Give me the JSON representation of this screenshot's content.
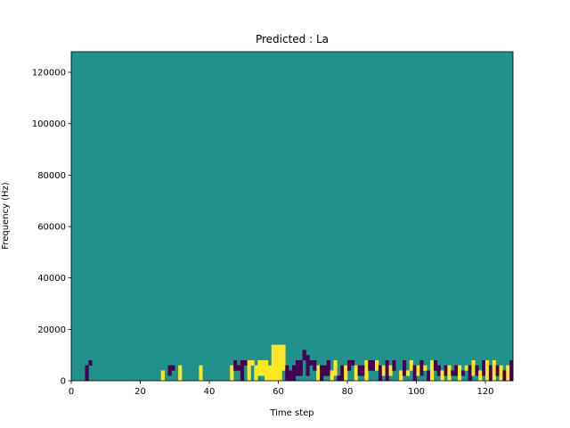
{
  "chart_data": {
    "type": "heatmap",
    "title": "Predicted : La",
    "xlabel": "Time step",
    "ylabel": "Frequency (Hz)",
    "xlim": [
      0,
      128
    ],
    "ylim": [
      0,
      128000
    ],
    "x_ticks": [
      0,
      20,
      40,
      60,
      80,
      100,
      120
    ],
    "y_ticks": [
      0,
      20000,
      40000,
      60000,
      80000,
      100000,
      120000
    ],
    "colormap": "viridis",
    "grid": false,
    "n_time_steps": 128,
    "n_freq_bins": 64,
    "bin_height_hz": 2000,
    "colors": {
      "background": "#21918c",
      "high": "#fde725",
      "low": "#440154"
    },
    "background_value": 0,
    "cells": [
      [
        4,
        0,
        -1
      ],
      [
        4,
        1,
        -1
      ],
      [
        4,
        2,
        -1
      ],
      [
        5,
        3,
        -1
      ],
      [
        26,
        0,
        1
      ],
      [
        26,
        1,
        1
      ],
      [
        31,
        0,
        1
      ],
      [
        31,
        1,
        1
      ],
      [
        31,
        2,
        1
      ],
      [
        56,
        0,
        1
      ],
      [
        56,
        1,
        1
      ],
      [
        56,
        2,
        1
      ],
      [
        56,
        3,
        1
      ],
      [
        57,
        0,
        1
      ],
      [
        57,
        1,
        1
      ],
      [
        57,
        2,
        1
      ],
      [
        58,
        0,
        1
      ],
      [
        58,
        1,
        1
      ],
      [
        58,
        2,
        1
      ],
      [
        58,
        3,
        1
      ],
      [
        58,
        4,
        1
      ],
      [
        58,
        5,
        1
      ],
      [
        58,
        6,
        1
      ],
      [
        59,
        0,
        1
      ],
      [
        59,
        1,
        1
      ],
      [
        59,
        2,
        1
      ],
      [
        59,
        3,
        1
      ],
      [
        59,
        4,
        1
      ],
      [
        59,
        5,
        1
      ],
      [
        59,
        6,
        1
      ],
      [
        60,
        0,
        1
      ],
      [
        60,
        1,
        1
      ],
      [
        60,
        2,
        1
      ],
      [
        60,
        3,
        1
      ],
      [
        60,
        4,
        1
      ],
      [
        60,
        5,
        1
      ],
      [
        60,
        6,
        1
      ],
      [
        61,
        2,
        1
      ],
      [
        61,
        3,
        1
      ],
      [
        61,
        4,
        1
      ],
      [
        61,
        5,
        1
      ],
      [
        61,
        6,
        1
      ],
      [
        66,
        1,
        -1
      ],
      [
        66,
        2,
        -1
      ],
      [
        66,
        3,
        -1
      ],
      [
        67,
        4,
        -1
      ],
      [
        67,
        5,
        -1
      ],
      [
        68,
        1,
        -1
      ],
      [
        68,
        2,
        -1
      ],
      [
        68,
        3,
        -1
      ],
      [
        68,
        4,
        -1
      ],
      [
        69,
        3,
        -1
      ],
      [
        71,
        0,
        1
      ],
      [
        71,
        1,
        1
      ],
      [
        71,
        2,
        1
      ],
      [
        28,
        1,
        -1
      ],
      [
        28,
        2,
        -1
      ],
      [
        29,
        2,
        -1
      ],
      [
        37,
        0,
        1
      ],
      [
        37,
        1,
        1
      ],
      [
        37,
        2,
        1
      ],
      [
        46,
        0,
        1
      ],
      [
        46,
        1,
        1
      ],
      [
        46,
        2,
        1
      ],
      [
        47,
        2,
        -1
      ],
      [
        47,
        3,
        -1
      ],
      [
        48,
        2,
        -1
      ],
      [
        49,
        0,
        -1
      ],
      [
        49,
        1,
        -1
      ],
      [
        49,
        2,
        -1
      ],
      [
        49,
        3,
        -1
      ],
      [
        50,
        3,
        -1
      ],
      [
        51,
        0,
        1
      ],
      [
        51,
        1,
        1
      ],
      [
        51,
        2,
        1
      ],
      [
        51,
        3,
        1
      ],
      [
        52,
        3,
        1
      ],
      [
        53,
        0,
        1
      ],
      [
        53,
        1,
        1
      ],
      [
        53,
        2,
        1
      ],
      [
        54,
        1,
        1
      ],
      [
        54,
        2,
        1
      ],
      [
        54,
        3,
        1
      ],
      [
        55,
        1,
        1
      ],
      [
        55,
        2,
        1
      ],
      [
        55,
        3,
        1
      ],
      [
        62,
        0,
        -1
      ],
      [
        62,
        1,
        -1
      ],
      [
        62,
        2,
        -1
      ],
      [
        63,
        0,
        -1
      ],
      [
        63,
        1,
        -1
      ],
      [
        64,
        0,
        -1
      ],
      [
        64,
        1,
        -1
      ],
      [
        64,
        2,
        -1
      ],
      [
        65,
        1,
        -1
      ],
      [
        65,
        2,
        -1
      ],
      [
        65,
        3,
        -1
      ],
      [
        70,
        2,
        -1
      ],
      [
        70,
        3,
        -1
      ],
      [
        72,
        0,
        -1
      ],
      [
        72,
        1,
        -1
      ],
      [
        72,
        2,
        -1
      ],
      [
        73,
        1,
        -1
      ],
      [
        73,
        2,
        -1
      ],
      [
        74,
        1,
        -1
      ],
      [
        74,
        2,
        -1
      ],
      [
        74,
        3,
        -1
      ],
      [
        75,
        0,
        1
      ],
      [
        75,
        1,
        1
      ],
      [
        76,
        1,
        1
      ],
      [
        76,
        2,
        1
      ],
      [
        76,
        3,
        1
      ],
      [
        77,
        0,
        -1
      ],
      [
        78,
        0,
        -1
      ],
      [
        78,
        1,
        -1
      ],
      [
        78,
        2,
        -1
      ],
      [
        79,
        0,
        1
      ],
      [
        79,
        1,
        1
      ],
      [
        79,
        2,
        1
      ],
      [
        80,
        2,
        -1
      ],
      [
        80,
        3,
        -1
      ],
      [
        81,
        3,
        -1
      ],
      [
        82,
        0,
        1
      ],
      [
        82,
        1,
        1
      ],
      [
        82,
        2,
        1
      ],
      [
        83,
        1,
        -1
      ],
      [
        83,
        2,
        -1
      ],
      [
        84,
        1,
        -1
      ],
      [
        84,
        2,
        -1
      ],
      [
        85,
        0,
        1
      ],
      [
        85,
        1,
        1
      ],
      [
        85,
        2,
        1
      ],
      [
        85,
        3,
        1
      ],
      [
        86,
        2,
        -1
      ],
      [
        86,
        3,
        -1
      ],
      [
        87,
        2,
        -1
      ],
      [
        87,
        3,
        -1
      ],
      [
        88,
        2,
        1
      ],
      [
        88,
        3,
        1
      ],
      [
        89,
        0,
        -1
      ],
      [
        89,
        1,
        -1
      ],
      [
        89,
        2,
        -1
      ],
      [
        90,
        1,
        1
      ],
      [
        90,
        2,
        1
      ],
      [
        91,
        0,
        -1
      ],
      [
        91,
        1,
        -1
      ],
      [
        91,
        2,
        -1
      ],
      [
        91,
        3,
        -1
      ],
      [
        92,
        1,
        1
      ],
      [
        92,
        2,
        1
      ],
      [
        93,
        2,
        -1
      ],
      [
        93,
        3,
        -1
      ],
      [
        95,
        0,
        1
      ],
      [
        95,
        1,
        1
      ],
      [
        96,
        1,
        -1
      ],
      [
        96,
        2,
        -1
      ],
      [
        96,
        3,
        -1
      ],
      [
        97,
        1,
        1
      ],
      [
        98,
        2,
        1
      ],
      [
        98,
        3,
        1
      ],
      [
        99,
        0,
        -1
      ],
      [
        99,
        1,
        -1
      ],
      [
        99,
        2,
        -1
      ],
      [
        100,
        1,
        1
      ],
      [
        100,
        2,
        1
      ],
      [
        101,
        1,
        -1
      ],
      [
        101,
        2,
        -1
      ],
      [
        101,
        3,
        -1
      ],
      [
        102,
        2,
        1
      ],
      [
        103,
        0,
        -1
      ],
      [
        103,
        1,
        -1
      ],
      [
        104,
        0,
        1
      ],
      [
        104,
        1,
        1
      ],
      [
        104,
        2,
        1
      ],
      [
        104,
        3,
        1
      ],
      [
        105,
        2,
        -1
      ],
      [
        105,
        3,
        -1
      ],
      [
        106,
        1,
        -1
      ],
      [
        106,
        2,
        -1
      ],
      [
        107,
        0,
        1
      ],
      [
        107,
        1,
        1
      ],
      [
        108,
        1,
        -1
      ],
      [
        108,
        2,
        -1
      ],
      [
        109,
        0,
        1
      ],
      [
        109,
        1,
        1
      ],
      [
        109,
        2,
        1
      ],
      [
        110,
        1,
        -1
      ],
      [
        111,
        1,
        -1
      ],
      [
        111,
        2,
        -1
      ],
      [
        112,
        0,
        1
      ],
      [
        112,
        1,
        1
      ],
      [
        112,
        2,
        1
      ],
      [
        113,
        1,
        -1
      ],
      [
        114,
        2,
        1
      ],
      [
        115,
        0,
        -1
      ],
      [
        115,
        1,
        -1
      ],
      [
        115,
        2,
        -1
      ],
      [
        116,
        1,
        1
      ],
      [
        116,
        2,
        1
      ],
      [
        116,
        3,
        1
      ],
      [
        117,
        1,
        -1
      ],
      [
        117,
        2,
        -1
      ],
      [
        118,
        0,
        1
      ],
      [
        118,
        1,
        1
      ],
      [
        119,
        1,
        -1
      ],
      [
        119,
        2,
        -1
      ],
      [
        119,
        3,
        -1
      ],
      [
        120,
        0,
        1
      ],
      [
        120,
        1,
        1
      ],
      [
        120,
        2,
        1
      ],
      [
        120,
        3,
        1
      ],
      [
        121,
        0,
        -1
      ],
      [
        121,
        1,
        -1
      ],
      [
        121,
        2,
        -1
      ],
      [
        122,
        0,
        1
      ],
      [
        122,
        1,
        1
      ],
      [
        122,
        2,
        1
      ],
      [
        122,
        3,
        1
      ],
      [
        123,
        1,
        -1
      ],
      [
        123,
        2,
        -1
      ],
      [
        124,
        0,
        1
      ],
      [
        124,
        1,
        1
      ],
      [
        124,
        2,
        1
      ],
      [
        125,
        0,
        -1
      ],
      [
        125,
        1,
        -1
      ],
      [
        126,
        0,
        1
      ],
      [
        126,
        1,
        1
      ],
      [
        126,
        2,
        1
      ],
      [
        127,
        0,
        -1
      ],
      [
        127,
        1,
        -1
      ],
      [
        127,
        2,
        -1
      ],
      [
        127,
        3,
        -1
      ]
    ]
  }
}
